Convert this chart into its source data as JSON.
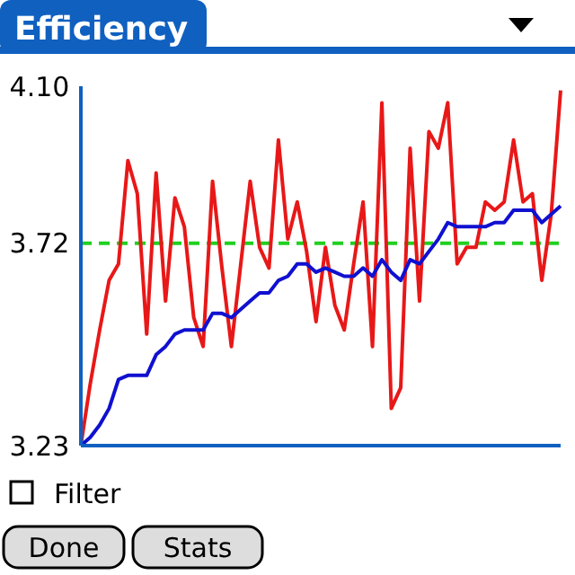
{
  "chart_data": {
    "type": "line",
    "title": "Efficiency",
    "categories": [
      null,
      null,
      null,
      null,
      null,
      null,
      null,
      null,
      null,
      null,
      null,
      null,
      null,
      null,
      null,
      null,
      null,
      null,
      null,
      null,
      null,
      null,
      null,
      null,
      null,
      null,
      null,
      null,
      null,
      null,
      null,
      null,
      null,
      null,
      null,
      null,
      null,
      null,
      null,
      null,
      null,
      null,
      null,
      null,
      null,
      null,
      null,
      null,
      null,
      null,
      null,
      null
    ],
    "series": [
      {
        "color": "#e81818",
        "values": [
          3.23,
          3.38,
          3.51,
          3.63,
          3.67,
          3.92,
          3.84,
          3.5,
          3.89,
          3.58,
          3.83,
          3.76,
          3.54,
          3.47,
          3.87,
          3.66,
          3.47,
          3.67,
          3.87,
          3.71,
          3.66,
          3.97,
          3.73,
          3.82,
          3.7,
          3.53,
          3.71,
          3.57,
          3.51,
          3.67,
          3.82,
          3.47,
          4.06,
          3.32,
          3.37,
          3.95,
          3.58,
          3.99,
          3.95,
          4.06,
          3.67,
          3.71,
          3.71,
          3.82,
          3.8,
          3.82,
          3.97,
          3.82,
          3.84,
          3.63,
          3.79,
          4.09
        ]
      },
      {
        "color": "#1010d0",
        "values": [
          3.23,
          3.25,
          3.28,
          3.32,
          3.39,
          3.4,
          3.4,
          3.4,
          3.45,
          3.47,
          3.5,
          3.51,
          3.51,
          3.51,
          3.55,
          3.55,
          3.54,
          3.56,
          3.58,
          3.6,
          3.6,
          3.63,
          3.64,
          3.67,
          3.67,
          3.65,
          3.66,
          3.65,
          3.64,
          3.64,
          3.66,
          3.64,
          3.68,
          3.65,
          3.63,
          3.68,
          3.67,
          3.7,
          3.73,
          3.77,
          3.76,
          3.76,
          3.76,
          3.76,
          3.77,
          3.77,
          3.8,
          3.8,
          3.8,
          3.77,
          3.79,
          3.81
        ]
      }
    ],
    "ylim": [
      3.23,
      4.1
    ],
    "yticks": [
      {
        "value": 3.23,
        "label": "3.23"
      },
      {
        "value": 3.72,
        "label": "3.72"
      },
      {
        "value": 4.1,
        "label": "4.10"
      }
    ],
    "ref_lines": [
      {
        "axis": "y",
        "value": 3.72,
        "color": "#20d020",
        "line_style": "dashed"
      }
    ],
    "tick_labels": "y",
    "grid": false,
    "marker": "none",
    "line_style": "solid",
    "annotations": [
      "Filter",
      "Done",
      "Stats"
    ]
  }
}
